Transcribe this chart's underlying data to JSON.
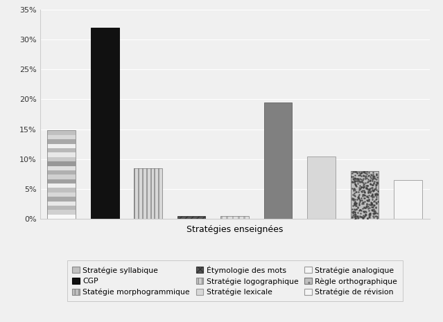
{
  "values": [
    14.8,
    32.0,
    8.5,
    0.5,
    0.5,
    19.5,
    10.5,
    8.0,
    6.5
  ],
  "xlabel": "Stratégies enseignées",
  "ylim": [
    0,
    35
  ],
  "yticks": [
    0,
    5,
    10,
    15,
    20,
    25,
    30,
    35
  ],
  "legend_col1": [
    {
      "label": "Stratégie syllabique",
      "fc": "#b0b0b0",
      "ec": "#777777",
      "hatch": null
    },
    {
      "label": "Étymologie des mots",
      "fc": "#555555",
      "ec": "#333333",
      "hatch": "xxx"
    },
    {
      "label": "Stratégie analogique",
      "fc": "#ffffff",
      "ec": "#777777",
      "hatch": null
    }
  ],
  "legend_col2": [
    {
      "label": "CGP",
      "fc": "#111111",
      "ec": "#000000",
      "hatch": null
    },
    {
      "label": "Stratégie logographique",
      "fc": "#d0d0d0",
      "ec": "#777777",
      "hatch": "|||"
    },
    {
      "label": "Règle orthographique",
      "fc": "#b0b0b0",
      "ec": "#666666",
      "hatch": ".."
    }
  ],
  "legend_col3": [
    {
      "label": "Statégie morphogrammique",
      "fc": "#808080",
      "ec": "#555555",
      "hatch": "|||"
    },
    {
      "label": "Stratégie lexicale",
      "fc": "#d8d8d8",
      "ec": "#888888",
      "hatch": null
    },
    {
      "label": "Stratégie de révision",
      "fc": "#f5f5f5",
      "ec": "#999999",
      "hatch": null
    }
  ],
  "bg_color": "#f0f0f0",
  "plot_bg": "#f0f0f0"
}
